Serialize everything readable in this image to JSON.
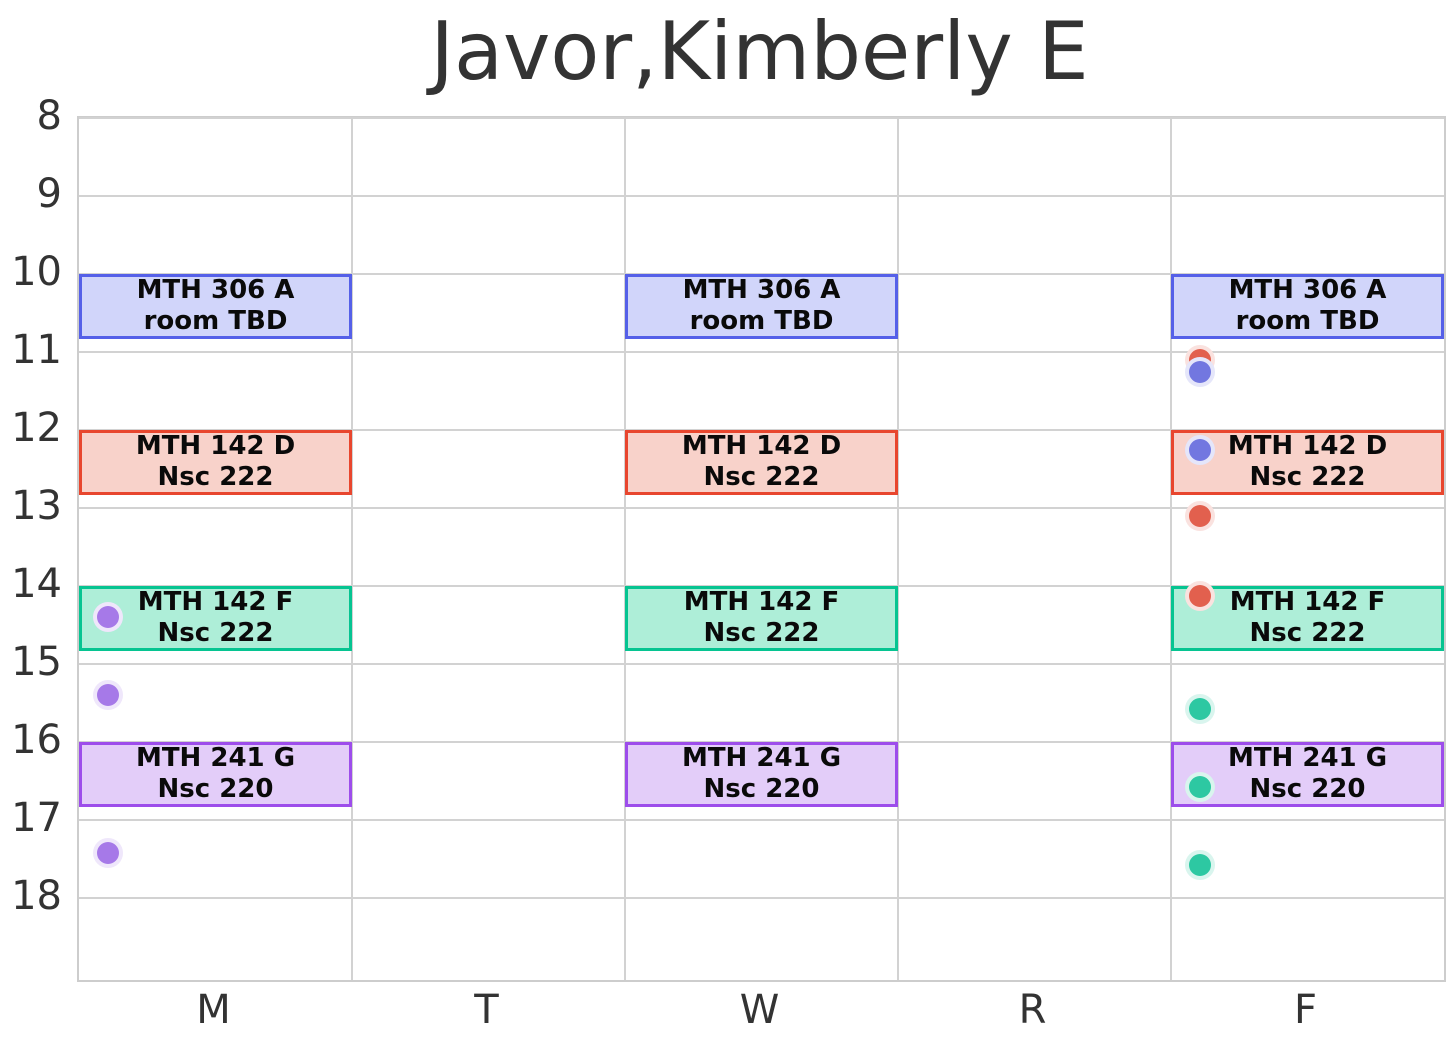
{
  "title": "Javor,Kimberly E",
  "chart_data": {
    "type": "scatter",
    "description": "Weekly course schedule grid (hours of day vs weekday) with 50-minute class blocks on Mon/Wed/Fri and colored scatter markers in the M and F columns",
    "title": "Javor,Kimberly E",
    "x_axis": {
      "labels": [
        "M",
        "T",
        "W",
        "R",
        "F"
      ]
    },
    "y_axis": {
      "tick_labels": [
        "8",
        "9",
        "10",
        "11",
        "12",
        "13",
        "14",
        "15",
        "16",
        "17",
        "18"
      ],
      "min": 8,
      "max": 19.05,
      "unit": "hour of day"
    },
    "grid": true,
    "legend": "none",
    "blocks": [
      {
        "course": "MTH 306 A",
        "room": "room TBD",
        "days": [
          "M",
          "W",
          "F"
        ],
        "start_hour": 10.0,
        "end_hour": 10.83,
        "fill": "#d1d5fa",
        "border": "#5560e8"
      },
      {
        "course": "MTH 142 D",
        "room": "Nsc 222",
        "days": [
          "M",
          "W",
          "F"
        ],
        "start_hour": 12.0,
        "end_hour": 12.83,
        "fill": "#f8d2ca",
        "border": "#e8462e"
      },
      {
        "course": "MTH 142 F",
        "room": "Nsc 222",
        "days": [
          "M",
          "W",
          "F"
        ],
        "start_hour": 14.0,
        "end_hour": 14.83,
        "fill": "#aeeed8",
        "border": "#06c491"
      },
      {
        "course": "MTH 241 G",
        "room": "Nsc 220",
        "days": [
          "M",
          "W",
          "F"
        ],
        "start_hour": 16.0,
        "end_hour": 16.83,
        "fill": "#e3cdf9",
        "border": "#9d4deb"
      }
    ],
    "markers": [
      {
        "day": "M",
        "hour": 14.4,
        "color": "#a679e8"
      },
      {
        "day": "M",
        "hour": 15.4,
        "color": "#a679e8"
      },
      {
        "day": "M",
        "hour": 17.42,
        "color": "#a679e8"
      },
      {
        "day": "F",
        "hour": 11.1,
        "color": "#e2604e"
      },
      {
        "day": "F",
        "hour": 11.26,
        "color": "#7277e0"
      },
      {
        "day": "F",
        "hour": 12.25,
        "color": "#7277e0"
      },
      {
        "day": "F",
        "hour": 13.1,
        "color": "#e2604e"
      },
      {
        "day": "F",
        "hour": 14.13,
        "color": "#e2604e"
      },
      {
        "day": "F",
        "hour": 15.57,
        "color": "#2dc8a2"
      },
      {
        "day": "F",
        "hour": 16.57,
        "color": "#2dc8a2"
      },
      {
        "day": "F",
        "hour": 17.57,
        "color": "#2dc8a2"
      }
    ],
    "colors": {
      "axis_text": "#333333",
      "grid": "#d2d2d2",
      "block_text": "#0a0a0a",
      "background": "#ffffff"
    }
  }
}
